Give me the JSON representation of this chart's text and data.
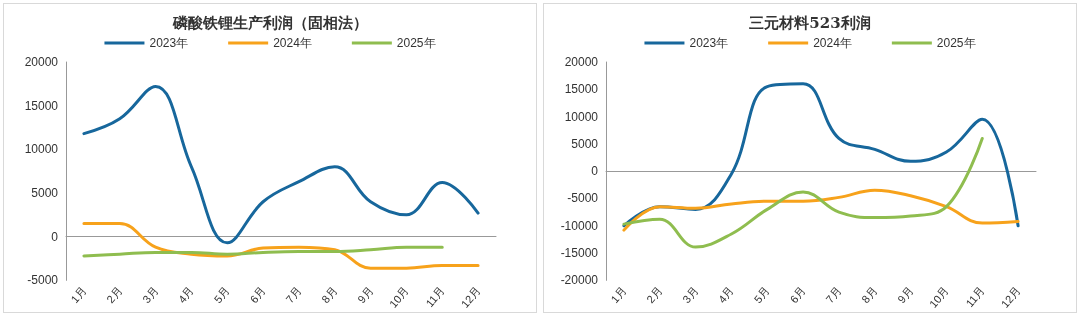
{
  "chart_data": [
    {
      "type": "line",
      "title": "磷酸铁锂生产利润（固相法）",
      "categories": [
        "1月",
        "2月",
        "3月",
        "4月",
        "5月",
        "6月",
        "7月",
        "8月",
        "9月",
        "10月",
        "11月",
        "12月"
      ],
      "series": [
        {
          "name": "2023年",
          "color": "#17679c",
          "values": [
            11800,
            13500,
            17200,
            8000,
            -700,
            4000,
            6300,
            8000,
            4000,
            2500,
            6200,
            2700
          ]
        },
        {
          "name": "2024年",
          "color": "#f7a21b",
          "values": [
            1500,
            1500,
            -1200,
            -2000,
            -2200,
            -1300,
            -1200,
            -1500,
            -3600,
            -3600,
            -3300,
            -3300
          ]
        },
        {
          "name": "2025年",
          "color": "#8fbd4f",
          "values": [
            -2200,
            -2000,
            -1800,
            -1800,
            -2000,
            -1800,
            -1700,
            -1700,
            -1500,
            -1200,
            -1200,
            null
          ]
        }
      ],
      "ylim": [
        -5000,
        20000
      ],
      "yticks": [
        -5000,
        0,
        5000,
        10000,
        15000,
        20000
      ],
      "legend": "top",
      "marker": "none"
    },
    {
      "type": "line",
      "title": "三元材料523利润",
      "categories": [
        "1月",
        "2月",
        "3月",
        "4月",
        "5月",
        "6月",
        "7月",
        "8月",
        "9月",
        "10月",
        "11月",
        "12月"
      ],
      "series": [
        {
          "name": "2023年",
          "color": "#17679c",
          "values": [
            -10000,
            -6500,
            -7000,
            -500,
            15500,
            16000,
            6000,
            4000,
            1800,
            3500,
            9500,
            -10000
          ]
        },
        {
          "name": "2024年",
          "color": "#f7a21b",
          "values": [
            -10800,
            -6500,
            -6800,
            -6000,
            -5500,
            -5500,
            -4800,
            -3500,
            -4500,
            -6500,
            -9500,
            -9200
          ]
        },
        {
          "name": "2025年",
          "color": "#8fbd4f",
          "values": [
            -9700,
            -8800,
            -13900,
            -11500,
            -7000,
            -3800,
            -7500,
            -8500,
            -8200,
            -6500,
            6000,
            null
          ]
        }
      ],
      "ylim": [
        -20000,
        20000
      ],
      "yticks": [
        -20000,
        -15000,
        -10000,
        -5000,
        0,
        5000,
        10000,
        15000,
        20000
      ],
      "legend": "top",
      "marker": "none"
    }
  ]
}
